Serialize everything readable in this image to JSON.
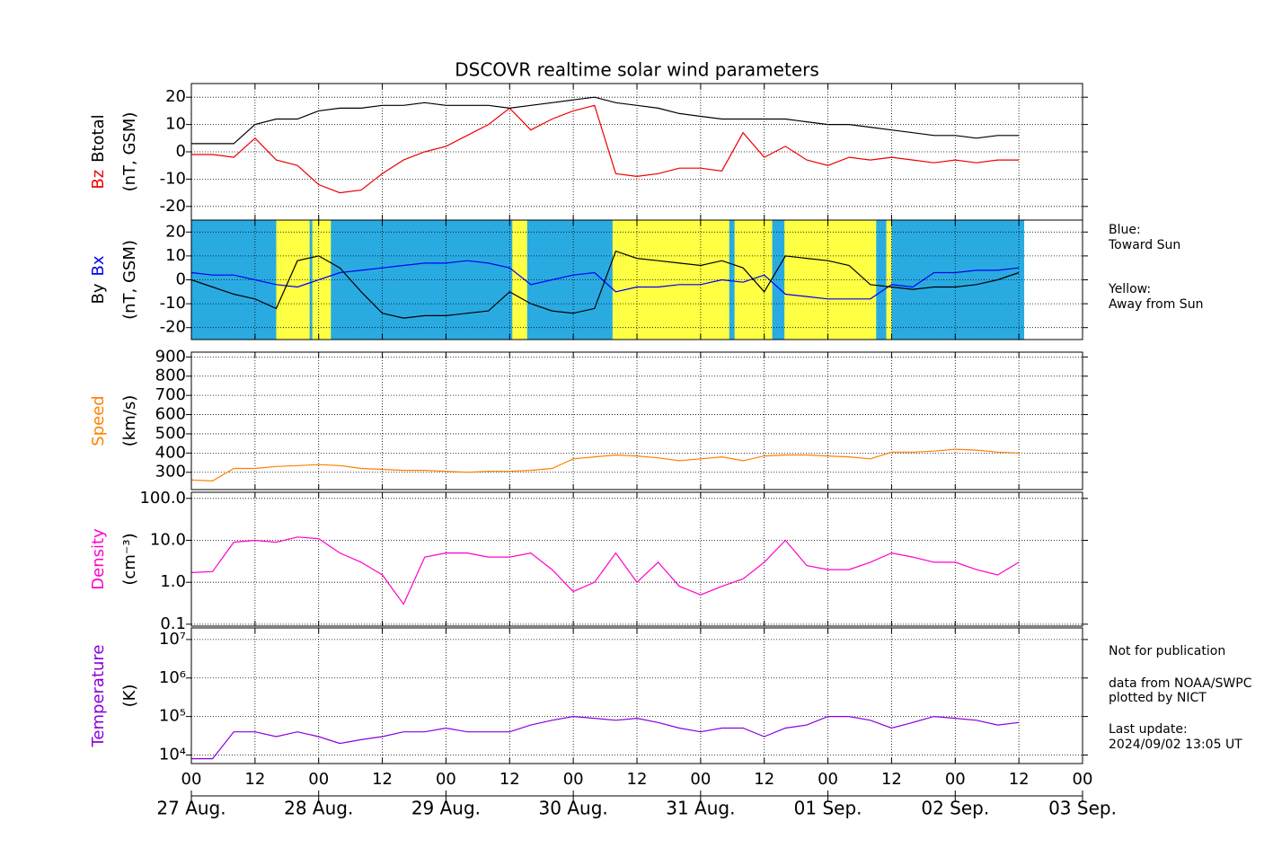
{
  "chart_data": {
    "title": "DSCOVR realtime solar wind parameters",
    "x": [
      0,
      4,
      8,
      12,
      16,
      20,
      24,
      28,
      32,
      36,
      40,
      44,
      48,
      52,
      56,
      60,
      64,
      68,
      72,
      76,
      80,
      84,
      88,
      92,
      96,
      100,
      104,
      108,
      112,
      116,
      120,
      124,
      128,
      132,
      136,
      140,
      144,
      148,
      152,
      156
    ],
    "xlim": [
      0,
      168
    ],
    "xticks": [
      {
        "value": 0,
        "label": "00"
      },
      {
        "value": 12,
        "label": "12"
      },
      {
        "value": 24,
        "label": "00"
      },
      {
        "value": 36,
        "label": "12"
      },
      {
        "value": 48,
        "label": "00"
      },
      {
        "value": 60,
        "label": "12"
      },
      {
        "value": 72,
        "label": "00"
      },
      {
        "value": 84,
        "label": "12"
      },
      {
        "value": 96,
        "label": "00"
      },
      {
        "value": 108,
        "label": "12"
      },
      {
        "value": 120,
        "label": "00"
      },
      {
        "value": 132,
        "label": "12"
      },
      {
        "value": 144,
        "label": "00"
      },
      {
        "value": 156,
        "label": "12"
      },
      {
        "value": 168,
        "label": "00"
      }
    ],
    "dates": [
      {
        "value": 0,
        "label": "27 Aug."
      },
      {
        "value": 24,
        "label": "28 Aug."
      },
      {
        "value": 48,
        "label": "29 Aug."
      },
      {
        "value": 72,
        "label": "30 Aug."
      },
      {
        "value": 96,
        "label": "31 Aug."
      },
      {
        "value": 120,
        "label": "01 Sep."
      },
      {
        "value": 144,
        "label": "02 Sep."
      },
      {
        "value": 168,
        "label": "03 Sep."
      }
    ],
    "grid": true,
    "panels": [
      {
        "type": "line",
        "ylabel": [
          "Bz",
          "Btotal"
        ],
        "yunit": "(nT, GSM)",
        "ylim": [
          -25,
          25
        ],
        "yticks": [
          -20,
          -10,
          0,
          10,
          20
        ],
        "series": [
          {
            "name": "Bz",
            "color": "#ee0000",
            "values": [
              -1,
              -1,
              -2,
              5,
              -3,
              -5,
              -12,
              -15,
              -14,
              -8,
              -3,
              0,
              2,
              6,
              10,
              16,
              8,
              12,
              15,
              17,
              -8,
              -9,
              -8,
              -6,
              -6,
              -7,
              7,
              -2,
              2,
              -3,
              -5,
              -2,
              -3,
              -2,
              -3,
              -4,
              -3,
              -4,
              -3,
              -3
            ]
          },
          {
            "name": "Btotal",
            "color": "#000000",
            "values": [
              3,
              3,
              3,
              10,
              12,
              12,
              15,
              16,
              16,
              17,
              17,
              18,
              17,
              17,
              17,
              16,
              17,
              18,
              19,
              20,
              18,
              17,
              16,
              14,
              13,
              12,
              12,
              12,
              12,
              11,
              10,
              10,
              9,
              8,
              7,
              6,
              6,
              5,
              6,
              6
            ]
          }
        ]
      },
      {
        "type": "line",
        "ylabel": [
          "By",
          "Bx"
        ],
        "yunit": "(nT, GSM)",
        "ylim": [
          -25,
          25
        ],
        "yticks": [
          -20,
          -10,
          0,
          10,
          20
        ],
        "bands_color": {
          "toward": "#29abe2",
          "away": "#ffff44"
        },
        "toward": [
          [
            0,
            157
          ]
        ],
        "away": [
          [
            16,
            22.3
          ],
          [
            22.8,
            26.3
          ],
          [
            60.5,
            63.3
          ],
          [
            79.4,
            101.4
          ],
          [
            102.4,
            109.5
          ],
          [
            111.8,
            129.1
          ],
          [
            131,
            132
          ]
        ],
        "notes": [
          "Blue:",
          "Toward Sun",
          "Yellow:",
          "Away from Sun"
        ],
        "series": [
          {
            "name": "Bx",
            "color": "#0000ee",
            "values": [
              3,
              2,
              2,
              0,
              -2,
              -3,
              0,
              3,
              4,
              5,
              6,
              7,
              7,
              8,
              7,
              5,
              -2,
              0,
              2,
              3,
              -5,
              -3,
              -3,
              -2,
              -2,
              0,
              -1,
              2,
              -6,
              -7,
              -8,
              -8,
              -8,
              -2,
              -3,
              3,
              3,
              4,
              4,
              5
            ]
          },
          {
            "name": "By",
            "color": "#000000",
            "values": [
              0,
              -3,
              -6,
              -8,
              -12,
              8,
              10,
              5,
              -5,
              -14,
              -16,
              -15,
              -15,
              -14,
              -13,
              -5,
              -10,
              -13,
              -14,
              -12,
              12,
              9,
              8,
              7,
              6,
              8,
              5,
              -5,
              10,
              9,
              8,
              6,
              -2,
              -3,
              -4,
              -3,
              -3,
              -2,
              0,
              3
            ]
          }
        ]
      },
      {
        "type": "line",
        "ylabel": [
          "Speed"
        ],
        "yunit": "(km/s)",
        "ylim": [
          210,
          925
        ],
        "yticks": [
          300,
          400,
          500,
          600,
          700,
          800,
          900
        ],
        "series": [
          {
            "name": "Speed",
            "color": "#ff8000",
            "values": [
              260,
              255,
              320,
              320,
              330,
              335,
              340,
              335,
              320,
              315,
              310,
              310,
              305,
              300,
              305,
              305,
              310,
              320,
              370,
              380,
              390,
              385,
              375,
              360,
              370,
              380,
              360,
              385,
              390,
              390,
              385,
              380,
              370,
              405,
              405,
              410,
              420,
              415,
              405,
              400
            ]
          }
        ]
      },
      {
        "type": "line",
        "log": true,
        "ylabel": [
          "Density"
        ],
        "yunit": "(cm⁻³)",
        "ylim": [
          0.09,
          140
        ],
        "yticks": [
          {
            "value": 0.1,
            "label": "0.1"
          },
          {
            "value": 1,
            "label": "1.0"
          },
          {
            "value": 10,
            "label": "10.0"
          },
          {
            "value": 100,
            "label": "100.0"
          }
        ],
        "series": [
          {
            "name": "Density",
            "color": "#ff00cc",
            "values": [
              1.7,
              1.8,
              9,
              10,
              9,
              12,
              11,
              5,
              3,
              1.5,
              0.3,
              4,
              5,
              5,
              4,
              4,
              5,
              2,
              0.6,
              1,
              5,
              1,
              3,
              0.8,
              0.5,
              0.8,
              1.2,
              3,
              10,
              2.5,
              2,
              2,
              3,
              5,
              4,
              3,
              3,
              2,
              1.5,
              3
            ]
          }
        ]
      },
      {
        "type": "line",
        "log": true,
        "ylabel": [
          "Temperature"
        ],
        "yunit": "(K)",
        "ylim": [
          6000,
          20000000
        ],
        "yticks": [
          {
            "value": 10000,
            "label": "10⁴"
          },
          {
            "value": 100000,
            "label": "10⁵"
          },
          {
            "value": 1000000,
            "label": "10⁶"
          },
          {
            "value": 10000000,
            "label": "10⁷"
          }
        ],
        "notes": [
          "Not for publication",
          "data from NOAA/SWPC",
          "plotted by NICT",
          "Last update:",
          "2024/09/02 13:05 UT"
        ],
        "series": [
          {
            "name": "Temperature",
            "color": "#8800dd",
            "values": [
              8000,
              8000,
              40000,
              40000,
              30000,
              40000,
              30000,
              20000,
              25000,
              30000,
              40000,
              40000,
              50000,
              40000,
              40000,
              40000,
              60000,
              80000,
              100000,
              90000,
              80000,
              90000,
              70000,
              50000,
              40000,
              50000,
              50000,
              30000,
              50000,
              60000,
              100000,
              100000,
              80000,
              50000,
              70000,
              100000,
              90000,
              80000,
              60000,
              70000
            ]
          }
        ]
      }
    ]
  }
}
